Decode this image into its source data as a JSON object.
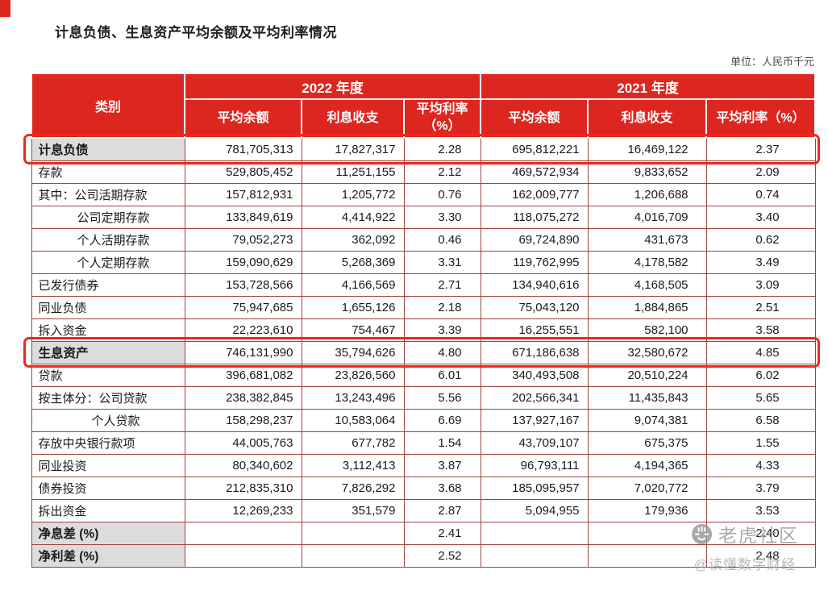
{
  "page": {
    "title": "计息负债、生息资产平均余额及平均利率情况",
    "unit_label": "单位：人民币千元"
  },
  "colors": {
    "header_red": "#de2620",
    "highlight_red": "#f1271a",
    "grid_line": "#9e423c",
    "gray_cell": "#dcdcdc"
  },
  "table": {
    "category_header": "类别",
    "year_groups": [
      {
        "label": "2022 年度"
      },
      {
        "label": "2021 年度"
      }
    ],
    "sub_headers": [
      "平均余额",
      "利息收支",
      "平均利率（%）"
    ],
    "rows": [
      {
        "category": "计息负债",
        "indent": 0,
        "bold": true,
        "gray": true,
        "highlight": true,
        "values": [
          "781,705,313",
          "17,827,317",
          "2.28",
          "695,812,221",
          "16,469,122",
          "2.37"
        ]
      },
      {
        "category": "存款",
        "indent": 0,
        "bold": false,
        "gray": false,
        "highlight": false,
        "values": [
          "529,805,452",
          "11,251,155",
          "2.12",
          "469,572,934",
          "9,833,652",
          "2.09"
        ]
      },
      {
        "category": "其中：公司活期存款",
        "indent": 0,
        "bold": false,
        "gray": false,
        "highlight": false,
        "values": [
          "157,812,931",
          "1,205,772",
          "0.76",
          "162,009,777",
          "1,206,688",
          "0.74"
        ]
      },
      {
        "category": "公司定期存款",
        "indent": 1,
        "bold": false,
        "gray": false,
        "highlight": false,
        "values": [
          "133,849,619",
          "4,414,922",
          "3.30",
          "118,075,272",
          "4,016,709",
          "3.40"
        ]
      },
      {
        "category": "个人活期存款",
        "indent": 1,
        "bold": false,
        "gray": false,
        "highlight": false,
        "values": [
          "79,052,273",
          "362,092",
          "0.46",
          "69,724,890",
          "431,673",
          "0.62"
        ]
      },
      {
        "category": "个人定期存款",
        "indent": 1,
        "bold": false,
        "gray": false,
        "highlight": false,
        "values": [
          "159,090,629",
          "5,268,369",
          "3.31",
          "119,762,995",
          "4,178,582",
          "3.49"
        ]
      },
      {
        "category": "已发行债券",
        "indent": 0,
        "bold": false,
        "gray": false,
        "highlight": false,
        "values": [
          "153,728,566",
          "4,166,569",
          "2.71",
          "134,940,616",
          "4,168,505",
          "3.09"
        ]
      },
      {
        "category": "同业负债",
        "indent": 0,
        "bold": false,
        "gray": false,
        "highlight": false,
        "values": [
          "75,947,685",
          "1,655,126",
          "2.18",
          "75,043,120",
          "1,884,865",
          "2.51"
        ]
      },
      {
        "category": "拆入资金",
        "indent": 0,
        "bold": false,
        "gray": false,
        "highlight": false,
        "values": [
          "22,223,610",
          "754,467",
          "3.39",
          "16,255,551",
          "582,100",
          "3.58"
        ]
      },
      {
        "category": "生息资产",
        "indent": 0,
        "bold": true,
        "gray": true,
        "highlight": true,
        "values": [
          "746,131,990",
          "35,794,626",
          "4.80",
          "671,186,638",
          "32,580,672",
          "4.85"
        ]
      },
      {
        "category": "贷款",
        "indent": 0,
        "bold": false,
        "gray": false,
        "highlight": false,
        "values": [
          "396,681,082",
          "23,826,560",
          "6.01",
          "340,493,508",
          "20,510,224",
          "6.02"
        ]
      },
      {
        "category": "按主体分：公司贷款",
        "indent": 0,
        "bold": false,
        "gray": false,
        "highlight": false,
        "values": [
          "238,382,845",
          "13,243,496",
          "5.56",
          "202,566,341",
          "11,435,843",
          "5.65"
        ]
      },
      {
        "category": "个人贷款",
        "indent": 2,
        "bold": false,
        "gray": false,
        "highlight": false,
        "values": [
          "158,298,237",
          "10,583,064",
          "6.69",
          "137,927,167",
          "9,074,381",
          "6.58"
        ]
      },
      {
        "category": "存放中央银行款项",
        "indent": 0,
        "bold": false,
        "gray": false,
        "highlight": false,
        "values": [
          "44,005,763",
          "677,782",
          "1.54",
          "43,709,107",
          "675,375",
          "1.55"
        ]
      },
      {
        "category": "同业投资",
        "indent": 0,
        "bold": false,
        "gray": false,
        "highlight": false,
        "values": [
          "80,340,602",
          "3,112,413",
          "3.87",
          "96,793,111",
          "4,194,365",
          "4.33"
        ]
      },
      {
        "category": "债券投资",
        "indent": 0,
        "bold": false,
        "gray": false,
        "highlight": false,
        "values": [
          "212,835,310",
          "7,826,292",
          "3.68",
          "185,095,957",
          "7,020,772",
          "3.79"
        ]
      },
      {
        "category": "拆出资金",
        "indent": 0,
        "bold": false,
        "gray": false,
        "highlight": false,
        "values": [
          "12,269,233",
          "351,579",
          "2.87",
          "5,094,955",
          "179,936",
          "3.53"
        ]
      },
      {
        "category": "净息差 (%)",
        "indent": 0,
        "bold": true,
        "gray": true,
        "highlight": false,
        "values": [
          "",
          "",
          "2.41",
          "",
          "",
          "2.40"
        ]
      },
      {
        "category": "净利差 (%)",
        "indent": 0,
        "bold": true,
        "gray": true,
        "highlight": false,
        "values": [
          "",
          "",
          "2.52",
          "",
          "",
          "2.48"
        ]
      }
    ]
  },
  "watermark": {
    "brand": "老虎社区",
    "handle": "@读懂数字财经",
    "logo_icon": "tiger-logo"
  }
}
